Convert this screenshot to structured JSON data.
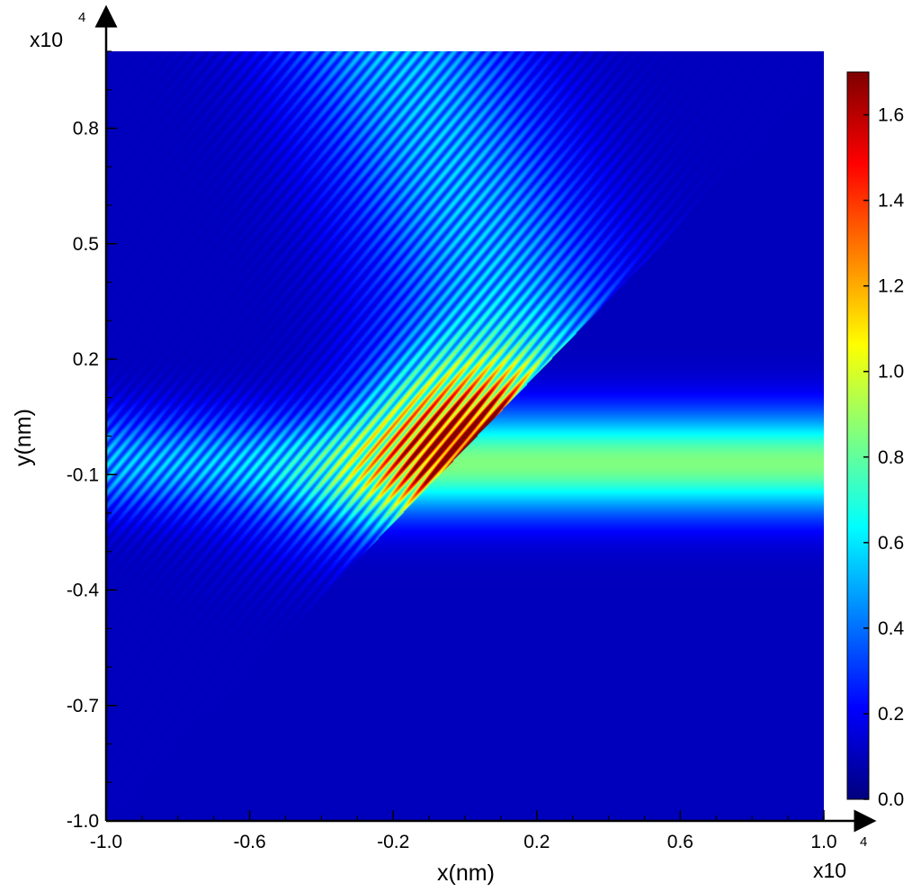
{
  "chart_data": {
    "type": "heatmap",
    "title": "",
    "xlabel": "x(nm)",
    "ylabel": "y(nm)",
    "x_exponent_label": "x10",
    "x_exponent": "4",
    "y_exponent_label": "x10",
    "y_exponent": "4",
    "xlim": [
      -1.0,
      1.0
    ],
    "ylim": [
      -1.0,
      1.0
    ],
    "x_ticks": [
      -1.0,
      -0.6,
      -0.2,
      0.2,
      0.6,
      1.0
    ],
    "x_tick_labels": [
      "-1.0",
      "-0.6",
      "-0.2",
      "0.2",
      "0.6",
      "1.0"
    ],
    "y_ticks": [
      0.8,
      0.5,
      0.2,
      -0.1,
      -0.4,
      -0.7,
      -1.0
    ],
    "y_tick_labels": [
      "0.8",
      "0.5",
      "0.2",
      "-0.1",
      "-0.4",
      "-0.7",
      "-1.0"
    ],
    "colorbar": {
      "range": [
        0.0,
        1.7
      ],
      "ticks": [
        0.0,
        0.2,
        0.4,
        0.6,
        0.8,
        1.0,
        1.2,
        1.4,
        1.6
      ],
      "tick_labels": [
        "0.0",
        "0.2",
        "0.4",
        "0.6",
        "0.8",
        "1.0",
        "1.2",
        "1.4",
        "1.6"
      ],
      "colormap": "jet"
    },
    "field": {
      "background": 0.1,
      "beam_center_y": -0.07,
      "beam_width_y": 0.13,
      "beam_peak": 0.75,
      "interface_points": [
        [
          -1.0,
          -1.0
        ],
        [
          0.22,
          0.18
        ]
      ],
      "interface_extension_points": [
        [
          -1.0,
          -1.0
        ],
        [
          0.82,
          0.9
        ]
      ],
      "reflected_beam_peak_x": -0.25,
      "reflected_beam_peak_value": 0.8,
      "peak_point": [
        0.0,
        0.02
      ],
      "peak_value": 1.65,
      "fringe_period_x": 0.032
    },
    "grid": false,
    "legend": "none"
  }
}
